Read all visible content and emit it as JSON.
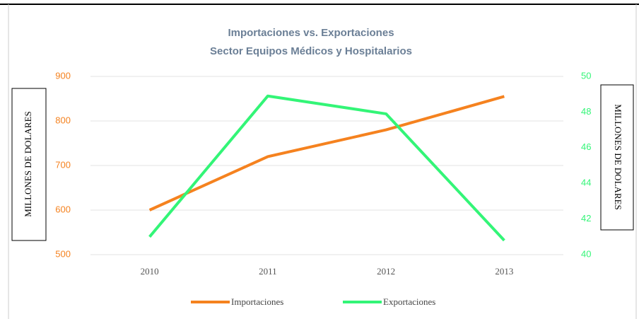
{
  "chart_data": {
    "type": "line",
    "title": "Importaciones vs. Exportaciones",
    "subtitle": "Sector Equipos Médicos y Hospitalarios",
    "y_label": "MILLONES DE DOLARES",
    "y2_label": "MILLONES DE DOLARES",
    "categories": [
      "2010",
      "2011",
      "2012",
      "2013"
    ],
    "series": [
      {
        "name": "Importaciones",
        "color": "#f5821f",
        "values": [
          600,
          720,
          780,
          855
        ]
      },
      {
        "name": "Exportaciones",
        "color": "#33f577",
        "values": [
          41.0,
          48.9,
          47.9,
          40.8
        ],
        "axis": "y2"
      }
    ],
    "ylim": [
      500,
      900
    ],
    "yticks": [
      500,
      600,
      700,
      800,
      900
    ],
    "y2lim": [
      40,
      50
    ],
    "y2ticks": [
      40,
      42,
      44,
      46,
      48,
      50
    ],
    "grid": true,
    "legend": "bottom"
  }
}
